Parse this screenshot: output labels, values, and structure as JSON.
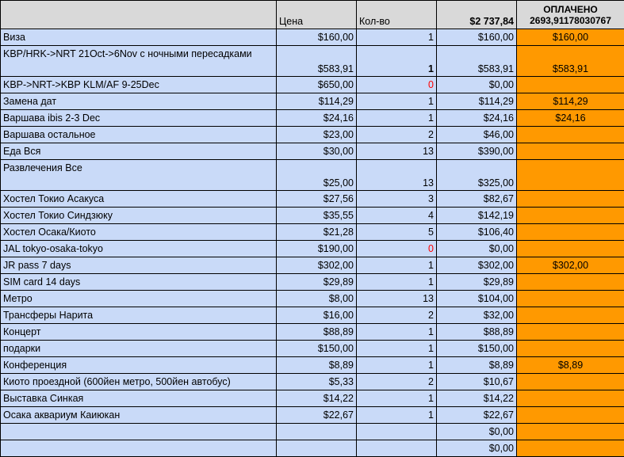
{
  "header": {
    "item": "",
    "price": "Цена",
    "qty": "Кол-во",
    "total": "$2 737,84",
    "paid_title": "ОПЛАЧЕНО",
    "paid_value": "2693,91178030767"
  },
  "rows": [
    {
      "item": "Виза",
      "price": "$160,00",
      "qty": "1",
      "total": "$160,00",
      "paid": "$160,00"
    },
    {
      "item": "KBP/HRK->NRT 21Oct->6Nov с ночными пересадками",
      "price": "$583,91",
      "qty": "1",
      "total": "$583,91",
      "paid": "$583,91",
      "tall": true,
      "qty_bold": true
    },
    {
      "item": "KBP->NRT->KBP KLM/AF 9-25Dec",
      "price": "$650,00",
      "qty": "0",
      "total": "$0,00",
      "paid": "",
      "qty_red": true
    },
    {
      "item": "Замена дат",
      "price": "$114,29",
      "qty": "1",
      "total": "$114,29",
      "paid": "$114,29"
    },
    {
      "item": "Варшава ibis 2-3 Dec",
      "price": "$24,16",
      "qty": "1",
      "total": "$24,16",
      "paid": "$24,16"
    },
    {
      "item": "Варшава остальное",
      "price": "$23,00",
      "qty": "2",
      "total": "$46,00",
      "paid": ""
    },
    {
      "item": "Еда Вся",
      "price": "$30,00",
      "qty": "13",
      "total": "$390,00",
      "paid": ""
    },
    {
      "item": "Развлечения Все",
      "price": "$25,00",
      "qty": "13",
      "total": "$325,00",
      "paid": "",
      "tall": true
    },
    {
      "item": "Хостел Токио Асакуса",
      "price": "$27,56",
      "qty": "3",
      "total": "$82,67",
      "paid": ""
    },
    {
      "item": "Хостел Токио Синдзюку",
      "price": "$35,55",
      "qty": "4",
      "total": "$142,19",
      "paid": ""
    },
    {
      "item": "Хостел Осака/Киото",
      "price": "$21,28",
      "qty": "5",
      "total": "$106,40",
      "paid": ""
    },
    {
      "item": "JAL tokyo-osaka-tokyo",
      "price": "$190,00",
      "qty": "0",
      "total": "$0,00",
      "paid": "",
      "qty_red": true
    },
    {
      "item": "JR pass 7 days",
      "price": "$302,00",
      "qty": "1",
      "total": "$302,00",
      "paid": "$302,00"
    },
    {
      "item": "SIM card 14 days",
      "price": "$29,89",
      "qty": "1",
      "total": "$29,89",
      "paid": ""
    },
    {
      "item": "Метро",
      "price": "$8,00",
      "qty": "13",
      "total": "$104,00",
      "paid": ""
    },
    {
      "item": "Трансферы Нарита",
      "price": "$16,00",
      "qty": "2",
      "total": "$32,00",
      "paid": ""
    },
    {
      "item": "Концерт",
      "price": "$88,89",
      "qty": "1",
      "total": "$88,89",
      "paid": ""
    },
    {
      "item": "подарки",
      "price": "$150,00",
      "qty": "1",
      "total": "$150,00",
      "paid": ""
    },
    {
      "item": "Конференция",
      "price": "$8,89",
      "qty": "1",
      "total": "$8,89",
      "paid": "$8,89"
    },
    {
      "item": "Киото проездной (600йен метро, 500йен автобус)",
      "price": "$5,33",
      "qty": "2",
      "total": "$10,67",
      "paid": ""
    },
    {
      "item": "Выставка Синкая",
      "price": "$14,22",
      "qty": "1",
      "total": "$14,22",
      "paid": ""
    },
    {
      "item": "Осака аквариум Каиюкан",
      "price": "$22,67",
      "qty": "1",
      "total": "$22,67",
      "paid": ""
    },
    {
      "item": "",
      "price": "",
      "qty": "",
      "total": "$0,00",
      "paid": ""
    },
    {
      "item": "",
      "price": "",
      "qty": "",
      "total": "$0,00",
      "paid": ""
    }
  ]
}
